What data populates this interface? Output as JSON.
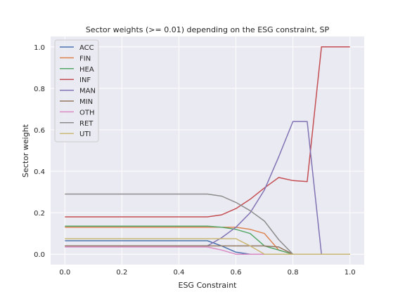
{
  "chart_data": {
    "type": "line",
    "title": "Sector weights (>= 0.01) depending on the ESG constraint, SP",
    "xlabel": "ESG Constraint",
    "ylabel": "Sector weight",
    "xlim": [
      -0.05,
      1.05
    ],
    "ylim": [
      -0.05,
      1.05
    ],
    "xticks": [
      0.0,
      0.2,
      0.4,
      0.6,
      0.8,
      1.0
    ],
    "xtick_labels": [
      "0.0",
      "0.2",
      "0.4",
      "0.6",
      "0.8",
      "1.0"
    ],
    "yticks": [
      0.0,
      0.2,
      0.4,
      0.6,
      0.8,
      1.0
    ],
    "ytick_labels": [
      "0.0",
      "0.2",
      "0.4",
      "0.6",
      "0.8",
      "1.0"
    ],
    "grid": true,
    "legend_position": "upper-left",
    "x": [
      0.0,
      0.05,
      0.1,
      0.15,
      0.2,
      0.25,
      0.3,
      0.35,
      0.4,
      0.45,
      0.5,
      0.55,
      0.6,
      0.65,
      0.7,
      0.75,
      0.8,
      0.85,
      0.9,
      0.95,
      1.0
    ],
    "series": [
      {
        "name": "ACC",
        "color": "#4c72b0",
        "values": [
          0.065,
          0.065,
          0.065,
          0.065,
          0.065,
          0.065,
          0.065,
          0.065,
          0.065,
          0.065,
          0.065,
          0.04,
          0.01,
          0.0,
          0.0,
          0.0,
          0.0,
          0.0,
          0.0,
          0.0,
          0.0
        ]
      },
      {
        "name": "FIN",
        "color": "#dd8452",
        "values": [
          0.13,
          0.13,
          0.13,
          0.13,
          0.13,
          0.13,
          0.13,
          0.13,
          0.13,
          0.13,
          0.13,
          0.13,
          0.13,
          0.12,
          0.1,
          0.02,
          0.0,
          0.0,
          0.0,
          0.0,
          0.0
        ]
      },
      {
        "name": "HEA",
        "color": "#55a868",
        "values": [
          0.135,
          0.135,
          0.135,
          0.135,
          0.135,
          0.135,
          0.135,
          0.135,
          0.135,
          0.135,
          0.135,
          0.13,
          0.12,
          0.1,
          0.04,
          0.02,
          0.0,
          0.0,
          0.0,
          0.0,
          0.0
        ]
      },
      {
        "name": "INF",
        "color": "#c44e52",
        "values": [
          0.18,
          0.18,
          0.18,
          0.18,
          0.18,
          0.18,
          0.18,
          0.18,
          0.18,
          0.18,
          0.18,
          0.19,
          0.22,
          0.265,
          0.32,
          0.37,
          0.355,
          0.35,
          1.0,
          1.0,
          1.0
        ]
      },
      {
        "name": "MAN",
        "color": "#8172b3",
        "values": [
          0.04,
          0.04,
          0.04,
          0.04,
          0.04,
          0.04,
          0.04,
          0.04,
          0.04,
          0.04,
          0.04,
          0.08,
          0.13,
          0.2,
          0.31,
          0.47,
          0.64,
          0.64,
          0.0,
          0.0,
          0.0
        ]
      },
      {
        "name": "MIN",
        "color": "#937860",
        "values": [
          0.04,
          0.04,
          0.04,
          0.04,
          0.04,
          0.04,
          0.04,
          0.04,
          0.04,
          0.04,
          0.04,
          0.04,
          0.04,
          0.04,
          0.04,
          0.035,
          0.0,
          0.0,
          0.0,
          0.0,
          0.0
        ]
      },
      {
        "name": "OTH",
        "color": "#da8bc3",
        "values": [
          0.035,
          0.035,
          0.035,
          0.035,
          0.035,
          0.035,
          0.035,
          0.035,
          0.035,
          0.035,
          0.035,
          0.02,
          0.0,
          0.0,
          0.0,
          0.0,
          0.0,
          0.0,
          0.0,
          0.0,
          0.0
        ]
      },
      {
        "name": "RET",
        "color": "#8c8c8c",
        "values": [
          0.29,
          0.29,
          0.29,
          0.29,
          0.29,
          0.29,
          0.29,
          0.29,
          0.29,
          0.29,
          0.29,
          0.28,
          0.25,
          0.21,
          0.16,
          0.07,
          0.0,
          0.0,
          0.0,
          0.0,
          0.0
        ]
      },
      {
        "name": "UTI",
        "color": "#ccb974",
        "values": [
          0.075,
          0.075,
          0.075,
          0.075,
          0.075,
          0.075,
          0.075,
          0.075,
          0.075,
          0.075,
          0.075,
          0.075,
          0.075,
          0.04,
          0.0,
          0.0,
          0.0,
          0.0,
          0.0,
          0.0,
          0.0
        ]
      }
    ]
  }
}
